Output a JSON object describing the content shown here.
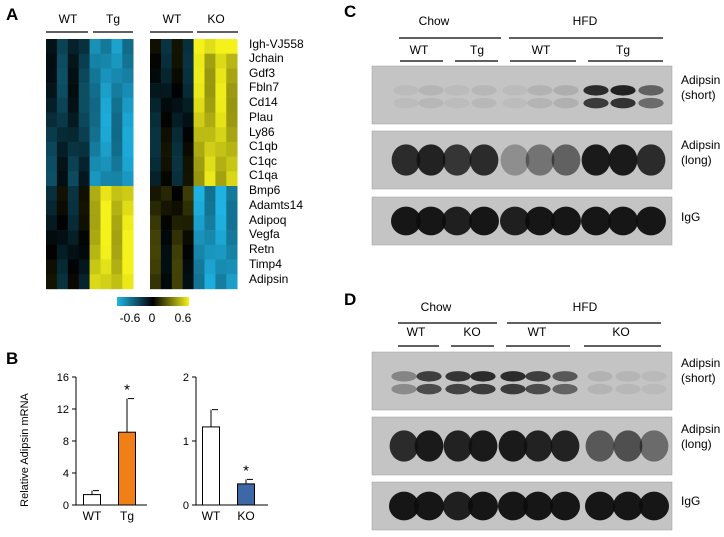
{
  "panels": {
    "A": {
      "letter": "A",
      "heatmap_groups_left": [
        "WT",
        "Tg"
      ],
      "heatmap_groups_right": [
        "WT",
        "KO"
      ],
      "genes": [
        "Igh-VJ558",
        "Jchain",
        "Gdf3",
        "Fbln7",
        "Cd14",
        "Plau",
        "Ly86",
        "C1qb",
        "C1qc",
        "C1qa",
        "Bmp6",
        "Adamts14",
        "Adipoq",
        "Vegfa",
        "Retn",
        "Timp4",
        "Adipsin"
      ],
      "colorbar": {
        "min_label": "-0.6",
        "mid_label": "0",
        "max_label": "0.6",
        "low_color": "#1fb7e8",
        "mid_color": "#000000",
        "high_color": "#f4f21a"
      }
    },
    "B": {
      "letter": "B",
      "ylabel": "Relative Adipsin mRNA",
      "significance": "*"
    },
    "C": {
      "letter": "C",
      "conditions": [
        "Chow",
        "HFD"
      ],
      "genotypes": [
        "WT",
        "Tg",
        "WT",
        "Tg"
      ],
      "blots": [
        "Adipsin (short)",
        "Adipsin (long)",
        "IgG"
      ]
    },
    "D": {
      "letter": "D",
      "conditions": [
        "Chow",
        "HFD"
      ],
      "genotypes": [
        "WT",
        "KO",
        "WT",
        "KO"
      ],
      "blots": [
        "Adipsin (short)",
        "Adipsin (long)",
        "IgG"
      ]
    }
  },
  "chart_data": [
    {
      "type": "bar",
      "categories": [
        "WT",
        "Tg"
      ],
      "values": [
        1.3,
        9.1
      ],
      "errors": [
        0.5,
        4.2
      ],
      "colors": [
        "#ffffff",
        "#f07f17"
      ],
      "yticks": [
        "0",
        "4",
        "8",
        "12",
        "16"
      ],
      "ylim": [
        0,
        16
      ],
      "ylabel": "Relative Adipsin mRNA",
      "annotations": [
        {
          "category": "Tg",
          "text": "*"
        }
      ]
    },
    {
      "type": "bar",
      "categories": [
        "WT",
        "KO"
      ],
      "values": [
        1.22,
        0.33
      ],
      "errors": [
        0.27,
        0.07
      ],
      "colors": [
        "#ffffff",
        "#3c69a5"
      ],
      "yticks": [
        "0",
        "1",
        "2"
      ],
      "ylim": [
        0,
        2
      ],
      "annotations": [
        {
          "category": "KO",
          "text": "*"
        }
      ]
    }
  ]
}
